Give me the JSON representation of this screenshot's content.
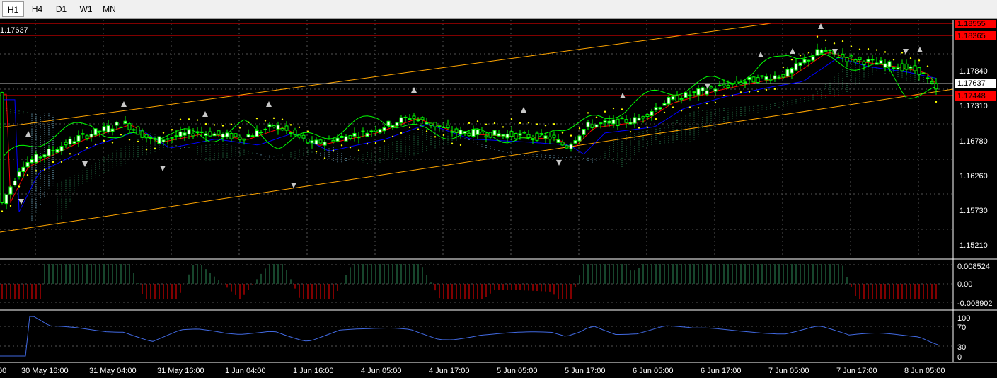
{
  "toolbar": {
    "timeframes": [
      "H1",
      "H4",
      "D1",
      "W1",
      "MN"
    ],
    "active": "H1"
  },
  "main_chart": {
    "current_price_label": "1.17637",
    "price_ticks": [
      "1.17840",
      "1.17310",
      "1.16780",
      "1.16260",
      "1.15730",
      "1.15210"
    ],
    "line_labels": [
      {
        "text": "1.18555",
        "color": "#ff0000"
      },
      {
        "text": "1.18365",
        "color": "#ff0000"
      },
      {
        "text": "1.17637",
        "color": "#ffffff"
      },
      {
        "text": "1.17448",
        "color": "#ff0000"
      }
    ],
    "price_range": [
      1.1492,
      1.1885
    ]
  },
  "macd_panel": {
    "ticks": [
      "0.008524",
      "0.00",
      "-0.008902"
    ]
  },
  "rsi_panel": {
    "ticks": [
      "100",
      "70",
      "30",
      "0"
    ]
  },
  "time_axis": {
    "labels": [
      "00",
      "30 May 16:00",
      "31 May 04:00",
      "31 May 16:00",
      "1 Jun 04:00",
      "1 Jun 16:00",
      "4 Jun 05:00",
      "4 Jun 17:00",
      "5 Jun 05:00",
      "5 Jun 17:00",
      "6 Jun 05:00",
      "6 Jun 17:00",
      "7 Jun 05:00",
      "7 Jun 17:00",
      "8 Jun 05:00"
    ]
  },
  "colors": {
    "background": "#000000",
    "grid": "#555555",
    "bull_candle": "#ffffff",
    "bear_candle": "#000000",
    "candle_outline": "#00ff00",
    "channel": "#ffa500",
    "level_line": "#ff0000",
    "ma_red": "#ff0000",
    "ma_blue": "#0000ff",
    "chikou": "#00ff00",
    "cloud_up": "#2e8b57",
    "cloud_down": "#87ceeb",
    "psar": "#ffff00",
    "macd_up": "#2e8b57",
    "macd_down": "#ff0000",
    "rsi": "#4169e1"
  }
}
